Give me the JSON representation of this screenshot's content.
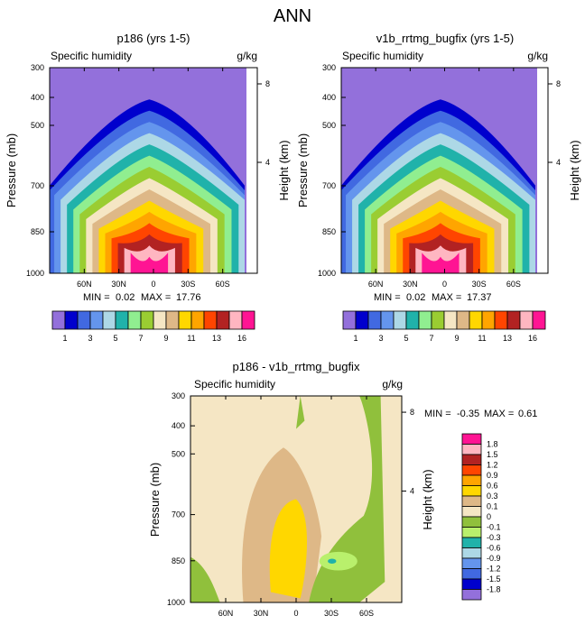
{
  "page_title": "ANN",
  "colors": {
    "upper_scale": [
      "#9370db",
      "#0000cd",
      "#4169e1",
      "#6495ed",
      "#add8e6",
      "#20b2aa",
      "#90ee90",
      "#9acd32",
      "#f5e6c4",
      "#deb887",
      "#ffd700",
      "#ffa500",
      "#ff4500",
      "#b22222",
      "#ffb6c1",
      "#ff1493"
    ],
    "diff_scale": [
      "#9370db",
      "#0000cd",
      "#4169e1",
      "#6495ed",
      "#add8e6",
      "#20b2aa",
      "#b9f06c",
      "#90c03c",
      "#f5e6c4",
      "#deb887",
      "#ffd700",
      "#ffa500",
      "#ff4500",
      "#b22222",
      "#ffb6c1",
      "#ff1493"
    ]
  },
  "chart_data": [
    {
      "type": "heatmap",
      "title": "p186 (yrs 1-5)",
      "left_label": "Specific humidity",
      "right_label": "g/kg",
      "ylabel": "Pressure (mb)",
      "y2label": "Height (km)",
      "x_ticks": [
        "60N",
        "30N",
        "0",
        "30S",
        "60S"
      ],
      "x_tick_lat": [
        60,
        30,
        0,
        -30,
        -60
      ],
      "xlim": [
        90,
        -90
      ],
      "y_ticks": [
        "300",
        "400",
        "500",
        "700",
        "850",
        "1000"
      ],
      "y_tick_values": [
        300,
        400,
        500,
        700,
        850,
        1000
      ],
      "ylim": [
        1000,
        300
      ],
      "y2_ticks": [
        "8",
        "4"
      ],
      "y2_tick_values": [
        8,
        4
      ],
      "stats": {
        "min_label": "MIN =",
        "min": "0.02",
        "max_label": "MAX =",
        "max": "17.76"
      }
    },
    {
      "type": "heatmap",
      "title": "v1b_rrtmg_bugfix (yrs 1-5)",
      "left_label": "Specific humidity",
      "right_label": "g/kg",
      "ylabel": "Pressure (mb)",
      "y2label": "Height (km)",
      "x_ticks": [
        "60N",
        "30N",
        "0",
        "30S",
        "60S"
      ],
      "x_tick_lat": [
        60,
        30,
        0,
        -30,
        -60
      ],
      "xlim": [
        90,
        -90
      ],
      "y_ticks": [
        "300",
        "400",
        "500",
        "700",
        "850",
        "1000"
      ],
      "y_tick_values": [
        300,
        400,
        500,
        700,
        850,
        1000
      ],
      "ylim": [
        1000,
        300
      ],
      "y2_ticks": [
        "8",
        "4"
      ],
      "y2_tick_values": [
        8,
        4
      ],
      "stats": {
        "min_label": "MIN =",
        "min": "0.02",
        "max_label": "MAX =",
        "max": "17.37"
      }
    },
    {
      "type": "heatmap",
      "title": "p186 - v1b_rrtmg_bugfix",
      "left_label": "Specific humidity",
      "right_label": "g/kg",
      "ylabel": "Pressure (mb)",
      "y2label": "Height (km)",
      "x_ticks": [
        "60N",
        "30N",
        "0",
        "30S",
        "60S"
      ],
      "x_tick_lat": [
        60,
        30,
        0,
        -30,
        -60
      ],
      "xlim": [
        90,
        -90
      ],
      "y_ticks": [
        "300",
        "400",
        "500",
        "700",
        "850",
        "1000"
      ],
      "y_tick_values": [
        300,
        400,
        500,
        700,
        850,
        1000
      ],
      "ylim": [
        1000,
        300
      ],
      "y2_ticks": [
        "8",
        "4"
      ],
      "y2_tick_values": [
        8,
        4
      ],
      "stats": {
        "min_label": "MIN =",
        "min": "-0.35",
        "max_label": "MAX =",
        "max": "0.61"
      }
    }
  ],
  "upper_colorbar": {
    "labels": [
      "1",
      "3",
      "5",
      "7",
      "9",
      "11",
      "13",
      "16"
    ],
    "levels": [
      1,
      2,
      3,
      4,
      5,
      6,
      7,
      8,
      9,
      10,
      11,
      12,
      13,
      14,
      16
    ]
  },
  "diff_colorbar": {
    "labels": [
      "1.8",
      "1.5",
      "1.2",
      "0.9",
      "0.6",
      "0.3",
      "0.1",
      "0",
      "-0.1",
      "-0.3",
      "-0.6",
      "-0.9",
      "-1.2",
      "-1.5",
      "-1.8"
    ]
  }
}
